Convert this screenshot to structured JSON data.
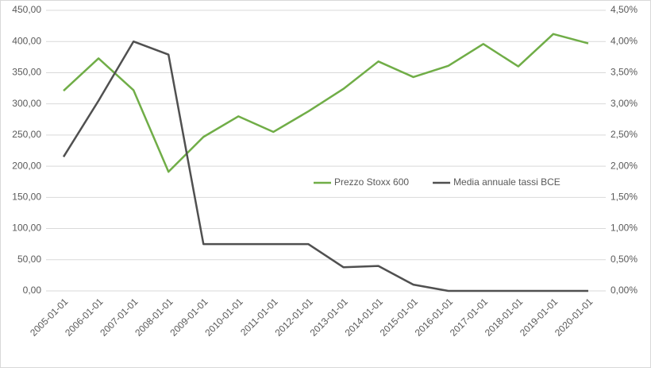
{
  "chart_data": {
    "type": "line",
    "categories": [
      "2005-01-01",
      "2006-01-01",
      "2007-01-01",
      "2008-01-01",
      "2009-01-01",
      "2010-01-01",
      "2011-01-01",
      "2012-01-01",
      "2013-01-01",
      "2014-01-01",
      "2015-01-01",
      "2016-01-01",
      "2017-01-01",
      "2018-01-01",
      "2019-01-01",
      "2020-01-01"
    ],
    "series": [
      {
        "name": "Prezzo Stoxx 600",
        "color": "#70ad47",
        "values": [
          321,
          373,
          322,
          191,
          247,
          280,
          255,
          288,
          324,
          368,
          343,
          361,
          396,
          360,
          412,
          397
        ]
      },
      {
        "name": "Media annuale tassi BCE",
        "color": "#505050",
        "axis": "y2",
        "values": [
          2.15,
          3.05,
          4.0,
          3.79,
          0.75,
          0.75,
          0.75,
          0.75,
          0.38,
          0.4,
          0.1,
          0,
          0,
          0,
          0,
          0
        ]
      }
    ],
    "ylim": [
      0,
      450
    ],
    "yticks": [
      {
        "value": 0,
        "label": "0,00"
      },
      {
        "value": 50,
        "label": "50,00"
      },
      {
        "value": 100,
        "label": "100,00"
      },
      {
        "value": 150,
        "label": "150,00"
      },
      {
        "value": 200,
        "label": "200,00"
      },
      {
        "value": 250,
        "label": "250,00"
      },
      {
        "value": 300,
        "label": "300,00"
      },
      {
        "value": 350,
        "label": "350,00"
      },
      {
        "value": 400,
        "label": "400,00"
      },
      {
        "value": 450,
        "label": "450,00"
      }
    ],
    "y2lim": [
      0,
      4.5
    ],
    "y2ticks": [
      {
        "value": 0,
        "label": "0,00%"
      },
      {
        "value": 0.5,
        "label": "0,50%"
      },
      {
        "value": 1,
        "label": "1,00%"
      },
      {
        "value": 1.5,
        "label": "1,50%"
      },
      {
        "value": 2,
        "label": "2,00%"
      },
      {
        "value": 2.5,
        "label": "2,50%"
      },
      {
        "value": 3,
        "label": "3,00%"
      },
      {
        "value": 3.5,
        "label": "3,50%"
      },
      {
        "value": 4,
        "label": "4,00%"
      },
      {
        "value": 4.5,
        "label": "4,50%"
      }
    ],
    "grid": true,
    "legend": "center-right"
  }
}
